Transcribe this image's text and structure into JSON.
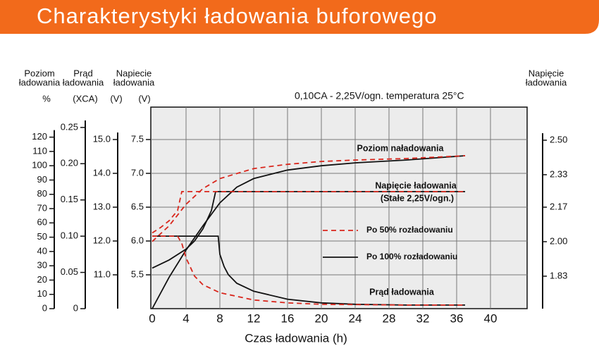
{
  "chart_data": {
    "type": "line",
    "title": "Charakterystyki ładowania buforowego",
    "subtitle": "0,10CA - 2,25V/ogn.   temperatura 25°C",
    "x_label": "Czas ładowania (h)",
    "xlim": [
      0,
      44
    ],
    "xticks": [
      0,
      4,
      8,
      12,
      16,
      20,
      24,
      28,
      32,
      36,
      40
    ],
    "grid": true,
    "axes": [
      {
        "title": [
          "Poziom",
          "ładowania"
        ],
        "unit": "%",
        "lim": [
          0,
          142
        ],
        "ticks": [
          0,
          10,
          20,
          30,
          40,
          50,
          60,
          70,
          80,
          90,
          100,
          110,
          120
        ],
        "series": [
          {
            "color": "#111111",
            "dashed": false,
            "x": [
              0,
              2,
              4,
              6,
              8,
              10,
              12,
              16,
              20,
              24,
              30,
              37
            ],
            "values": [
              0,
              22,
              41,
              58,
              74,
              85,
              91,
              97,
              100,
              102,
              104,
              107
            ]
          },
          {
            "color": "#d9261c",
            "dashed": true,
            "x": [
              0,
              2,
              4,
              6,
              8,
              12,
              16,
              20,
              24,
              30,
              37
            ],
            "values": [
              47,
              58,
              73,
              84,
              91,
              98,
              101,
              103,
              104,
              105,
              107
            ]
          }
        ]
      },
      {
        "title": [
          "Prąd",
          "ładowania"
        ],
        "unit": "(XCA)",
        "lim": [
          0,
          0.28
        ],
        "ticks": [
          0,
          0.05,
          {
            "value": 0.1,
            "label": "0.10"
          },
          0.15,
          {
            "value": 0.2,
            "label": "0.20"
          },
          0.25
        ],
        "series": [
          {
            "color": "#111111",
            "dashed": false,
            "x": [
              0,
              7.8,
              8,
              8.5,
              9,
              10,
              12,
              16,
              20,
              24,
              30,
              37
            ],
            "values": [
              0.1,
              0.1,
              0.075,
              0.058,
              0.047,
              0.035,
              0.024,
              0.013,
              0.008,
              0.006,
              0.005,
              0.005
            ]
          },
          {
            "color": "#d9261c",
            "dashed": true,
            "x": [
              0,
              3,
              3.5,
              4,
              5,
              6,
              8,
              12,
              16,
              20,
              30,
              37
            ],
            "values": [
              0.1,
              0.1,
              0.09,
              0.07,
              0.045,
              0.033,
              0.022,
              0.012,
              0.008,
              0.006,
              0.005,
              0.005
            ]
          }
        ]
      },
      {
        "unit": "(V)",
        "lim": [
          10,
          16
        ],
        "ticks": [
          {
            "value": 11,
            "label": "11.0"
          },
          {
            "value": 12,
            "label": "12.0"
          },
          {
            "value": 13,
            "label": "13.0"
          },
          {
            "value": 14,
            "label": "14.0"
          },
          {
            "value": 15,
            "label": "15.0"
          }
        ]
      },
      {
        "title": [
          "Napiecie",
          "ładowania"
        ],
        "unit": "(V)",
        "lim": [
          5,
          8
        ],
        "ticks": [
          5.5,
          {
            "value": 6,
            "label": "6.0"
          },
          6.5,
          {
            "value": 7,
            "label": "7.0"
          },
          7.5
        ],
        "series": [
          {
            "color": "#111111",
            "dashed": false,
            "x": [
              0,
              2,
              4,
              5,
              6,
              7,
              7.5,
              37
            ],
            "values": [
              5.6,
              5.72,
              5.88,
              6.0,
              6.18,
              6.45,
              6.73,
              6.73
            ]
          },
          {
            "color": "#d9261c",
            "dashed": true,
            "x": [
              0,
              1,
              2,
              3,
              3.5,
              37
            ],
            "values": [
              6.12,
              6.2,
              6.3,
              6.45,
              6.73,
              6.73
            ]
          }
        ]
      },
      {
        "title": [
          "Napięcie",
          "ładowania"
        ],
        "lim": [
          1.67,
          2.67
        ],
        "ticks": [
          1.83,
          {
            "value": 2,
            "label": "2.00"
          },
          2.17,
          2.33,
          {
            "value": 2.5,
            "label": "2.50"
          }
        ]
      }
    ],
    "legend": [
      {
        "label": "Po 50% rozładowaniu",
        "color": "#d9261c",
        "dashed": true
      },
      {
        "label": "Po 100% rozładowaniu",
        "color": "#111111",
        "dashed": false
      }
    ],
    "annotations": [
      "Poziom naładowania",
      "Napięcie ładowania",
      "(Stałe 2,25V/ogn.)",
      "Prąd ładowania"
    ]
  }
}
